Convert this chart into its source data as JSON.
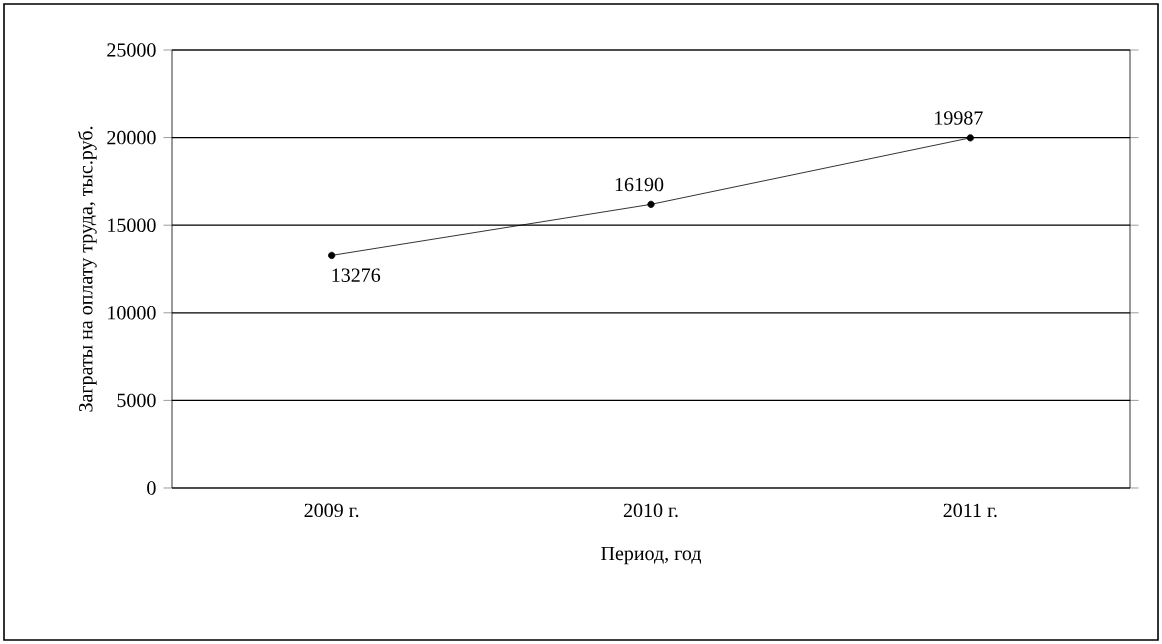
{
  "chart_data": {
    "type": "line",
    "xlabel": "Период, год",
    "ylabel": "Заграты на оплату труда, тыс.руб.",
    "categories": [
      "2009 г.",
      "2010 г.",
      "2011 г."
    ],
    "series": [
      {
        "color": "#000000",
        "values": [
          13276,
          16190,
          19987
        ],
        "value_labels": [
          "13276",
          "16190",
          "19987"
        ]
      }
    ],
    "ylim": [
      0,
      25000
    ],
    "yticks": [
      0,
      5000,
      10000,
      15000,
      20000,
      25000
    ],
    "grid": "y",
    "marker": "circle",
    "line_style": "solid"
  }
}
